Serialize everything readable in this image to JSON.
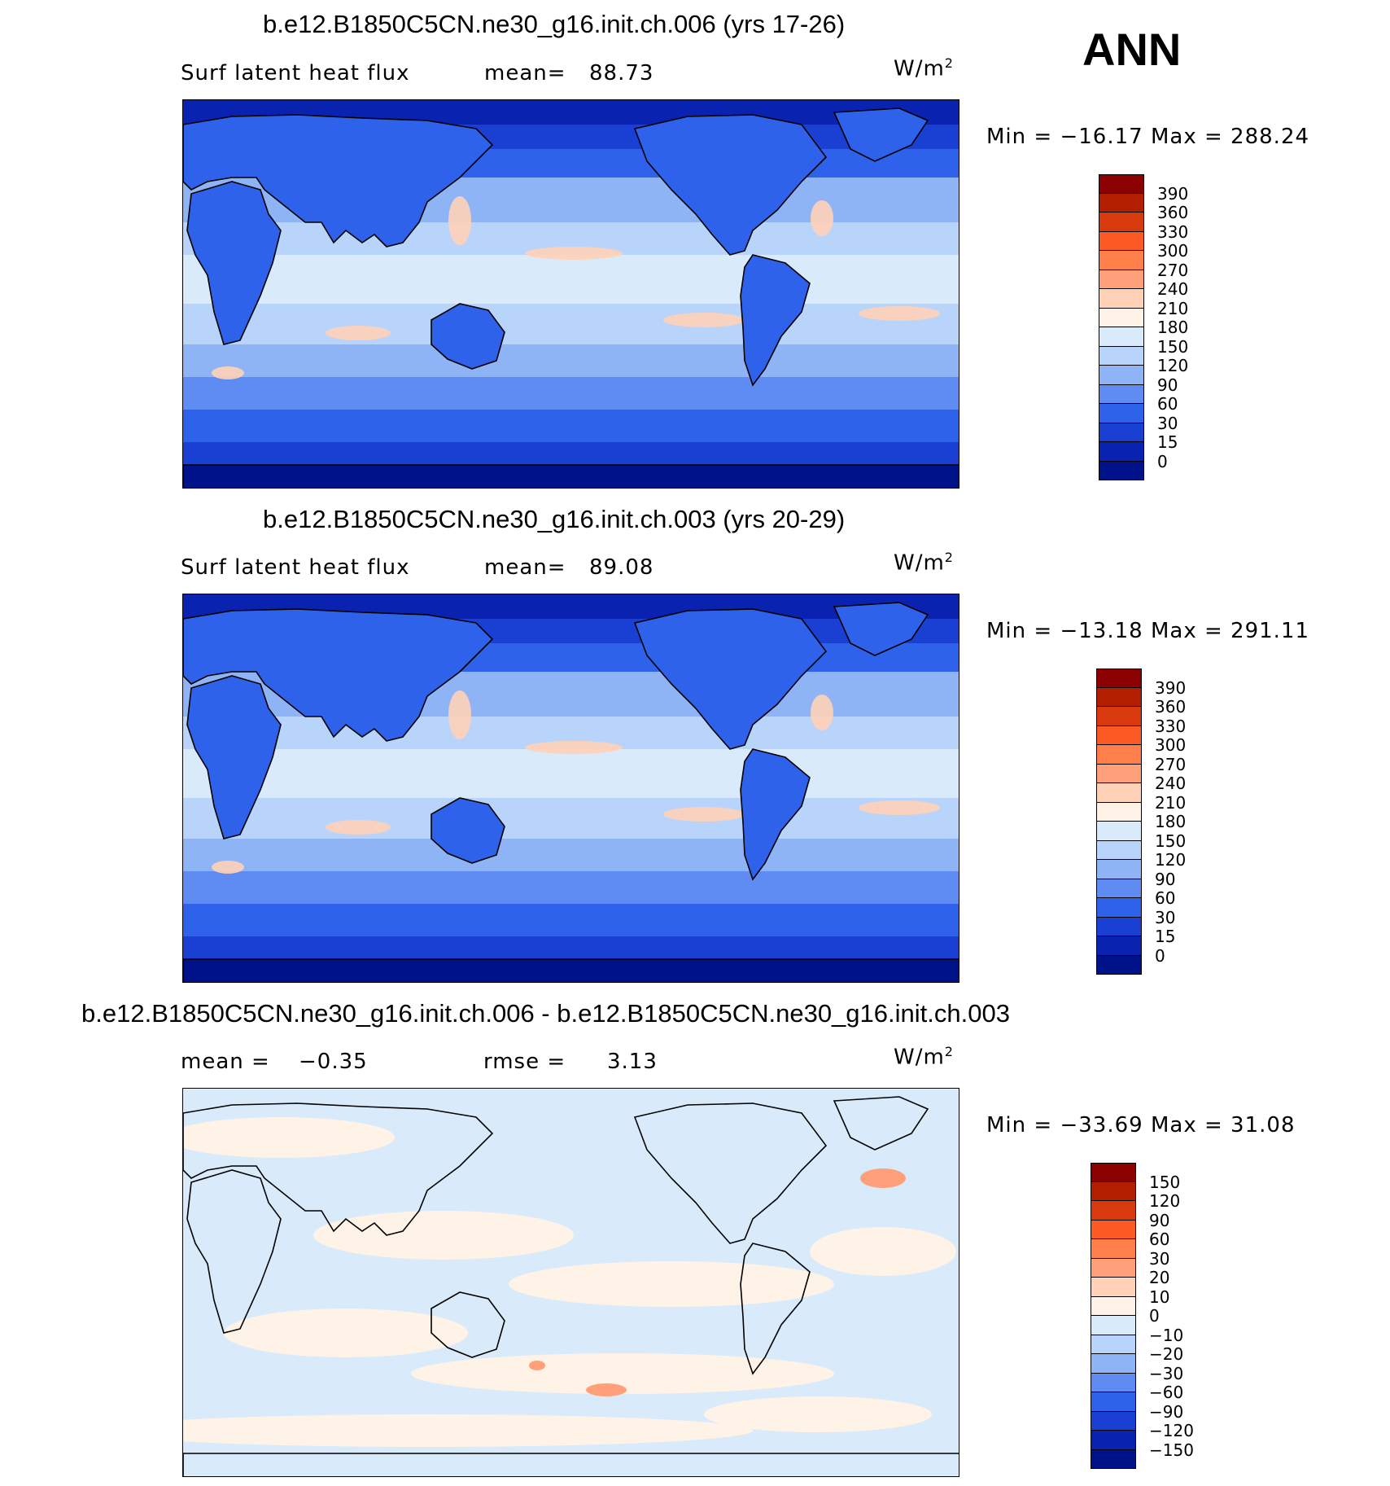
{
  "ann_label": "ANN",
  "panels": [
    {
      "title": "b.e12.B1850C5CN.ne30_g16.init.ch.006 (yrs 17-26)",
      "left_label": "Surf latent heat flux",
      "stat_label": "mean=",
      "stat_value": "88.73",
      "units": "W/m",
      "units_sup": "2",
      "min_label": "Min",
      "min_value": "−16.17",
      "max_label": "Max",
      "max_value": "288.24",
      "colorbar_labels": [
        "390",
        "360",
        "330",
        "300",
        "270",
        "240",
        "210",
        "180",
        "150",
        "120",
        "90",
        "60",
        "30",
        "15",
        "0"
      ],
      "colorbar_colors": [
        "#8b0000",
        "#b41e00",
        "#d83a0e",
        "#fb5a25",
        "#ff7f4a",
        "#ffa07a",
        "#ffd1b7",
        "#fff3e8",
        "#d9ebfa",
        "#b8d4fa",
        "#8fb4f6",
        "#5e8cf2",
        "#2e62ea",
        "#1a3fd3",
        "#0a22b0",
        "#00128a"
      ],
      "map_type": "absolute"
    },
    {
      "title": "b.e12.B1850C5CN.ne30_g16.init.ch.003 (yrs 20-29)",
      "left_label": "Surf latent heat flux",
      "stat_label": "mean=",
      "stat_value": "89.08",
      "units": "W/m",
      "units_sup": "2",
      "min_label": "Min",
      "min_value": "−13.18",
      "max_label": "Max",
      "max_value": "291.11",
      "colorbar_labels": [
        "390",
        "360",
        "330",
        "300",
        "270",
        "240",
        "210",
        "180",
        "150",
        "120",
        "90",
        "60",
        "30",
        "15",
        "0"
      ],
      "colorbar_colors": [
        "#8b0000",
        "#b41e00",
        "#d83a0e",
        "#fb5a25",
        "#ff7f4a",
        "#ffa07a",
        "#ffd1b7",
        "#fff3e8",
        "#d9ebfa",
        "#b8d4fa",
        "#8fb4f6",
        "#5e8cf2",
        "#2e62ea",
        "#1a3fd3",
        "#0a22b0",
        "#00128a"
      ],
      "map_type": "absolute"
    },
    {
      "title": "b.e12.B1850C5CN.ne30_g16.init.ch.006 - b.e12.B1850C5CN.ne30_g16.init.ch.003",
      "left_label": "mean =",
      "left_value": "−0.35",
      "stat_label": "rmse =",
      "stat_value": "3.13",
      "units": "W/m",
      "units_sup": "2",
      "min_label": "Min",
      "min_value": "−33.69",
      "max_label": "Max",
      "max_value": "31.08",
      "colorbar_labels": [
        "150",
        "120",
        "90",
        "60",
        "30",
        "20",
        "10",
        "0",
        "−10",
        "−20",
        "−30",
        "−60",
        "−90",
        "−120",
        "−150"
      ],
      "colorbar_colors": [
        "#8b0000",
        "#b41e00",
        "#d83a0e",
        "#fb5a25",
        "#ff7f4a",
        "#ffa07a",
        "#ffd1b7",
        "#fff3e8",
        "#d9ebfa",
        "#b8d4fa",
        "#8fb4f6",
        "#5e8cf2",
        "#2e62ea",
        "#1a3fd3",
        "#0a22b0",
        "#00128a"
      ],
      "map_type": "difference"
    }
  ]
}
